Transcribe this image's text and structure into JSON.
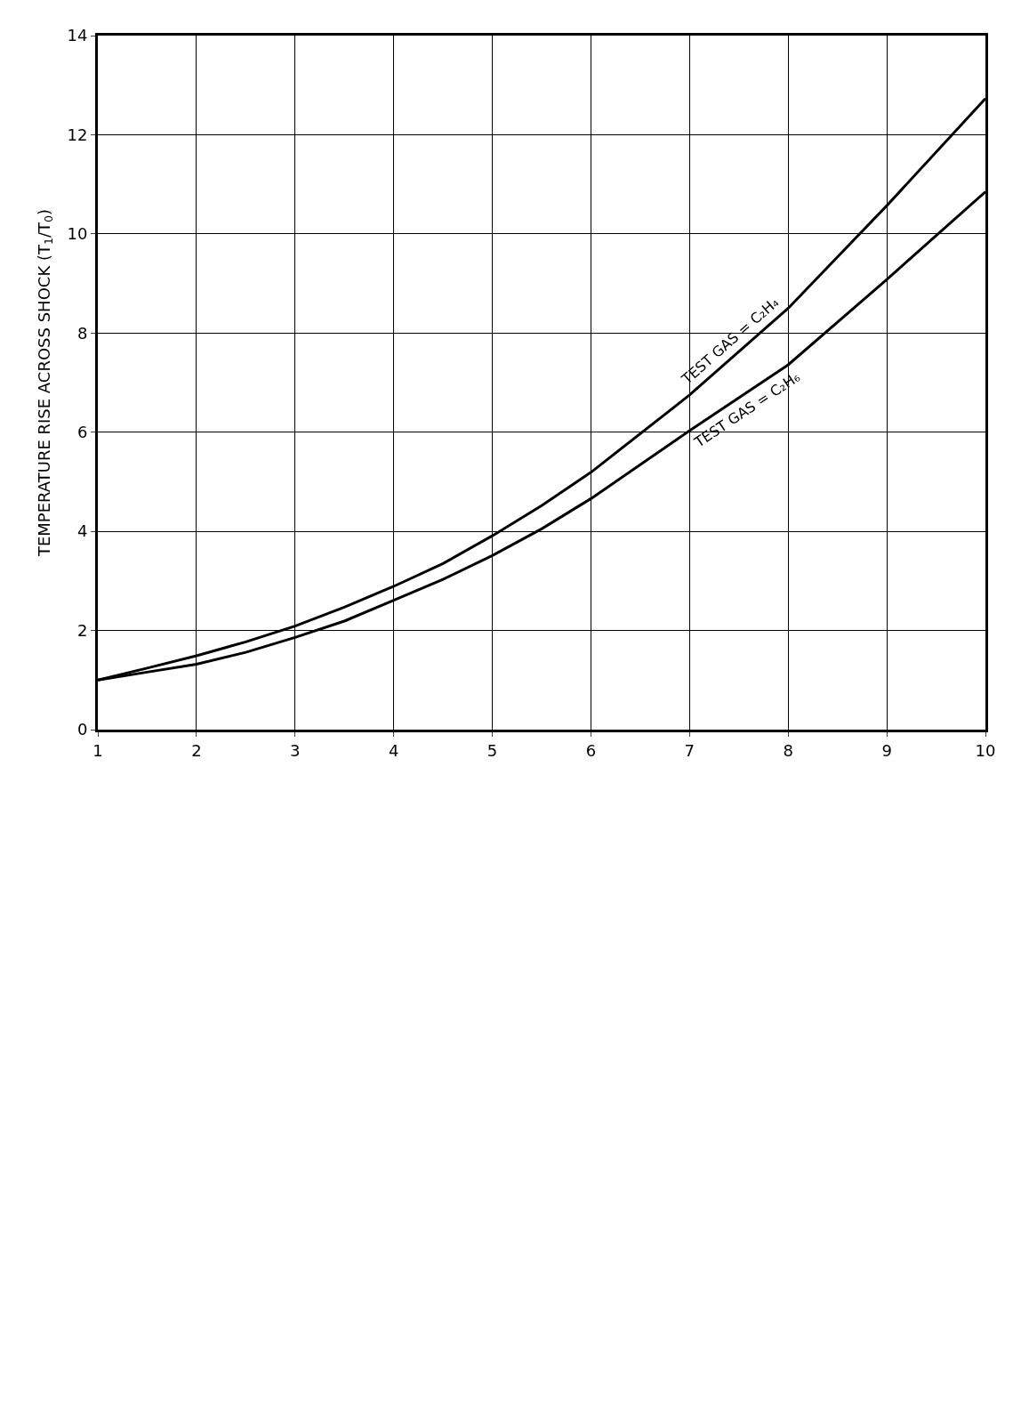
{
  "chart_data": {
    "type": "line",
    "ylabel": "TEMPERATURE RISE ACROSS SHOCK (T$_{1}$/T$_{0}$)",
    "x": [
      1,
      1.5,
      2,
      2.5,
      3,
      3.5,
      4,
      4.5,
      5,
      5.5,
      6,
      7,
      8,
      9,
      10
    ],
    "series": [
      {
        "name": "TEST GAS = C₂H₄",
        "color": "#000000",
        "values": [
          1.0,
          1.24,
          1.49,
          1.77,
          2.09,
          2.47,
          2.89,
          3.35,
          3.91,
          4.52,
          5.19,
          6.75,
          8.5,
          10.57,
          12.73
        ]
      },
      {
        "name": "TEST GAS = C₂H₆",
        "color": "#000000",
        "values": [
          1.0,
          1.16,
          1.32,
          1.56,
          1.86,
          2.19,
          2.61,
          3.03,
          3.51,
          4.05,
          4.66,
          6.03,
          7.36,
          9.08,
          10.85
        ]
      }
    ],
    "xlim": [
      1,
      10
    ],
    "xticks": [
      1,
      2,
      3,
      4,
      5,
      6,
      7,
      8,
      9,
      10
    ],
    "ylim": [
      0,
      14
    ],
    "yticks": [
      0,
      2,
      4,
      6,
      8,
      10,
      12,
      14
    ],
    "grid": true,
    "legend": false,
    "marker": "none",
    "line_style": "solid"
  }
}
